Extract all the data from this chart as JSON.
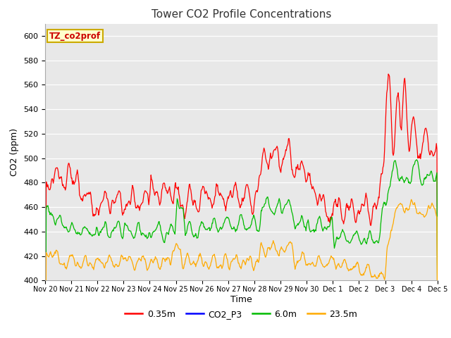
{
  "title": "Tower CO2 Profile Concentrations",
  "xlabel": "Time",
  "ylabel": "CO2 (ppm)",
  "ylim": [
    400,
    610
  ],
  "yticks": [
    400,
    420,
    440,
    460,
    480,
    500,
    520,
    540,
    560,
    580,
    600
  ],
  "xtick_labels": [
    "Nov 20",
    "Nov 21",
    "Nov 22",
    "Nov 23",
    "Nov 24",
    "Nov 25",
    "Nov 26",
    "Nov 27",
    "Nov 28",
    "Nov 29",
    "Nov 30",
    "Dec 1",
    "Dec 2",
    "Dec 3",
    "Dec 4",
    "Dec 5"
  ],
  "series_colors": {
    "0.35m": "#ff0000",
    "CO2_P3": "#0000ff",
    "6.0m": "#00bb00",
    "23.5m": "#ffaa00"
  },
  "legend_labels": [
    "0.35m",
    "CO2_P3",
    "6.0m",
    "23.5m"
  ],
  "annotation_text": "TZ_co2prof",
  "annotation_bgcolor": "#ffffcc",
  "annotation_edgecolor": "#ccaa00",
  "annotation_textcolor": "#cc0000",
  "plot_bg_color": "#e8e8e8",
  "fig_bg_color": "#ffffff",
  "grid_color": "#ffffff",
  "title_fontsize": 11,
  "axis_label_fontsize": 9,
  "tick_fontsize": 8,
  "n_points": 720,
  "seed": 42
}
